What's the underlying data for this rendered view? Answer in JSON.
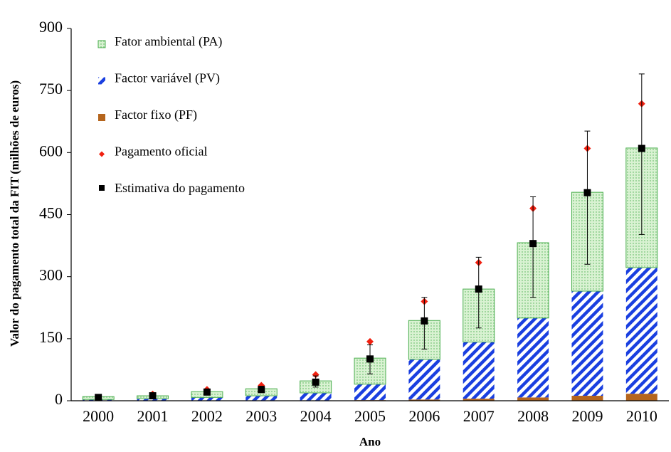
{
  "chart_data": {
    "type": "bar",
    "stacked": true,
    "x_label": "Ano",
    "y_label": "Valor do pagamento total da FIT (milhões de euros)",
    "categories": [
      "2000",
      "2001",
      "2002",
      "2003",
      "2004",
      "2005",
      "2006",
      "2007",
      "2008",
      "2009",
      "2010"
    ],
    "series": [
      {
        "name": "Fator ambiental (PA)",
        "type": "bar",
        "color": "#4caf50",
        "fill": "dots",
        "values": [
          7,
          7,
          14,
          17,
          29,
          63,
          94,
          128,
          182,
          239,
          289
        ]
      },
      {
        "name": "Factor variável (PV)",
        "type": "bar",
        "color": "#1a3fe0",
        "fill": "hatch",
        "values": [
          2.5,
          4.5,
          7.5,
          11,
          18,
          38.5,
          97,
          137,
          192,
          253,
          305
        ]
      },
      {
        "name": "Factor fixo (PF)",
        "type": "bar",
        "color": "#b5651d",
        "fill": "solid",
        "values": [
          0.5,
          0.5,
          0.5,
          1,
          1,
          1.5,
          3,
          5,
          8,
          12,
          17
        ]
      },
      {
        "name": "Pagamento oficial",
        "type": "scatter",
        "marker": "diamond",
        "color": "#f02010",
        "values": [
          8,
          16,
          27,
          37,
          63,
          143,
          240,
          334,
          465,
          610,
          718
        ]
      },
      {
        "name": "Estimativa do pagamento",
        "type": "scatter",
        "marker": "square",
        "color": "#000000",
        "values": [
          8,
          12,
          21,
          27,
          45,
          101,
          193,
          270,
          380,
          503,
          610
        ],
        "error_plus": [
          2,
          4,
          6,
          8,
          15,
          34,
          57,
          77,
          113,
          149,
          180
        ],
        "error_minus": [
          3,
          4,
          6,
          7,
          12,
          36,
          68,
          94,
          130,
          173,
          208
        ]
      }
    ],
    "ylim": [
      0,
      900
    ],
    "yticks": [
      0,
      150,
      300,
      450,
      600,
      750,
      900
    ],
    "legend": "upper left",
    "grid": false
  }
}
